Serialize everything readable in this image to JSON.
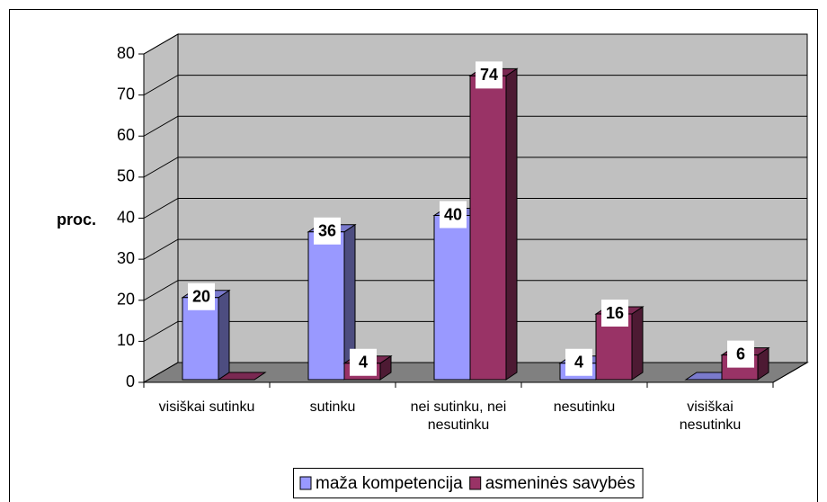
{
  "chart_data": {
    "type": "bar3d",
    "y_label": "proc.",
    "categories": [
      "visiškai sutinku",
      "sutinku",
      "nei sutinku, nei nesutinku",
      "nesutinku",
      "visiškai nesutinku"
    ],
    "series": [
      {
        "name": "maža kompetencija",
        "color": "#9999ff",
        "values": [
          20,
          36,
          40,
          4,
          0
        ]
      },
      {
        "name": "asmeninės savybės",
        "color": "#993366",
        "values": [
          0,
          4,
          74,
          16,
          6
        ]
      }
    ],
    "ylim": [
      0,
      80
    ],
    "yticks": [
      0,
      10,
      20,
      30,
      40,
      50,
      60,
      70,
      80
    ],
    "grid": true,
    "legend": "bottom"
  }
}
